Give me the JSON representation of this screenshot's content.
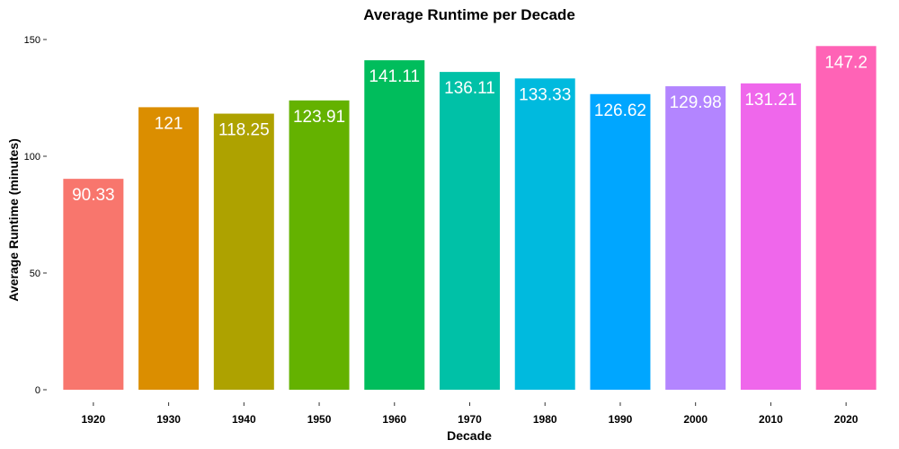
{
  "chart_data": {
    "type": "bar",
    "title": "Average Runtime per Decade",
    "xlabel": "Decade",
    "ylabel": "Average Runtime (minutes)",
    "categories": [
      "1920",
      "1930",
      "1940",
      "1950",
      "1960",
      "1970",
      "1980",
      "1990",
      "2000",
      "2010",
      "2020"
    ],
    "values": [
      90.33,
      121,
      118.25,
      123.91,
      141.11,
      136.11,
      133.33,
      126.62,
      129.98,
      131.21,
      147.2
    ],
    "value_labels": [
      "90.33",
      "121",
      "118.25",
      "123.91",
      "141.11",
      "136.11",
      "133.33",
      "126.62",
      "129.98",
      "131.21",
      "147.2"
    ],
    "colors": [
      "#F8766D",
      "#DB8E00",
      "#AEA200",
      "#64B200",
      "#00BD5C",
      "#00C1A7",
      "#00BADE",
      "#00A6FF",
      "#B385FF",
      "#EF67EB",
      "#FF63B6"
    ],
    "ylim": [
      0,
      150
    ],
    "yticks": [
      0,
      50,
      100,
      150
    ],
    "ytick_labels": [
      "0",
      "50",
      "100",
      "150"
    ],
    "grid": false,
    "legend": "none"
  }
}
